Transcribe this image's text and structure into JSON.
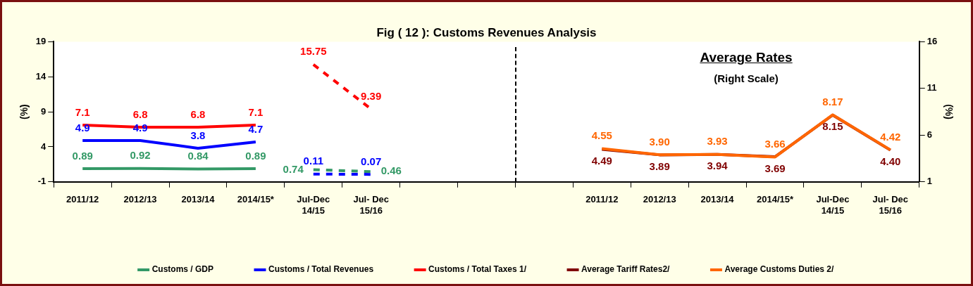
{
  "chart_data": {
    "type": "line",
    "title": "Fig ( 12 ): Customs Revenues Analysis",
    "annotations": [
      "Average Rates",
      "(Right Scale)"
    ],
    "ylabel": "(%)",
    "y2label": "(%)",
    "categories": [
      "2011/12",
      "2012/13",
      "2013/14",
      "2014/15*",
      "Jul-Dec 14/15",
      "Jul- Dec 15/16",
      null,
      null,
      null,
      "2011/12",
      "2012/13",
      "2013/14",
      "2014/15*",
      "Jul-Dec 14/15",
      "Jul- Dec 15/16"
    ],
    "series": [
      {
        "name": "Customs / GDP",
        "color": "#339966",
        "values": [
          0.89,
          0.92,
          0.84,
          0.89,
          null,
          null,
          null,
          null,
          null,
          null,
          null,
          null,
          null,
          null,
          null
        ]
      },
      {
        "color": "#339966",
        "line_style": "dashed",
        "values": [
          null,
          null,
          null,
          null,
          0.74,
          0.46,
          null,
          null,
          null,
          null,
          null,
          null,
          null,
          null,
          null
        ]
      },
      {
        "name": "Customs / Total Revenues",
        "color": "#0000ff",
        "values": [
          4.9,
          4.9,
          3.8,
          4.7,
          null,
          null,
          null,
          null,
          null,
          null,
          null,
          null,
          null,
          null,
          null
        ]
      },
      {
        "color": "#0000ff",
        "line_style": "dashed",
        "values": [
          null,
          null,
          null,
          null,
          0.11,
          0.07,
          null,
          null,
          null,
          null,
          null,
          null,
          null,
          null,
          null
        ]
      },
      {
        "name": "Customs / Total Taxes 1/",
        "color": "#ff0000",
        "values": [
          7.1,
          6.8,
          6.8,
          7.1,
          null,
          null,
          null,
          null,
          null,
          null,
          null,
          null,
          null,
          null,
          null
        ]
      },
      {
        "color": "#ff0000",
        "line_style": "dashed",
        "values": [
          null,
          null,
          null,
          null,
          15.75,
          9.39,
          null,
          null,
          null,
          null,
          null,
          null,
          null,
          null,
          null
        ]
      },
      {
        "name": "Average Tariff Rates2/",
        "color": "#800000",
        "axis": "y2",
        "values": [
          null,
          null,
          null,
          null,
          null,
          null,
          null,
          null,
          null,
          4.49,
          3.89,
          3.94,
          3.69,
          8.15,
          4.4
        ],
        "value_labels": [
          null,
          null,
          null,
          null,
          null,
          null,
          null,
          null,
          null,
          "4.49",
          "3.89",
          "3.94",
          "3.69",
          "8.15",
          "4.40"
        ]
      },
      {
        "name": "Average Customs Duties 2/",
        "color": "#ff6600",
        "axis": "y2",
        "values": [
          null,
          null,
          null,
          null,
          null,
          null,
          null,
          null,
          null,
          4.55,
          3.9,
          3.93,
          3.66,
          8.17,
          4.42
        ],
        "value_labels": [
          null,
          null,
          null,
          null,
          null,
          null,
          null,
          null,
          null,
          "4.55",
          "3.90",
          "3.93",
          "3.66",
          "8.17",
          "4.42"
        ]
      }
    ],
    "data_labels": true,
    "ylim": [
      -1,
      19
    ],
    "yticks": [
      -1,
      4,
      9,
      14,
      19
    ],
    "y2lim": [
      1,
      16
    ],
    "y2ticks": [
      1,
      6,
      11,
      16
    ],
    "legend": "bottom",
    "marker": "none",
    "line_style": "solid",
    "grid": false
  }
}
